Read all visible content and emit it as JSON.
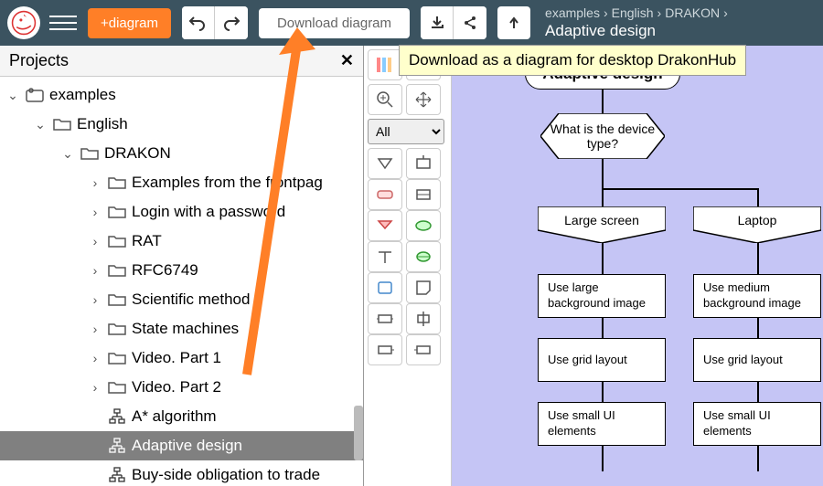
{
  "topbar": {
    "new_diagram_label": "+diagram",
    "download_label": "Download diagram",
    "tooltip": "Download as a diagram for desktop DrakonHub",
    "breadcrumb": [
      "examples",
      "English",
      "DRAKON"
    ],
    "breadcrumb_title": "Adaptive design"
  },
  "sidebar": {
    "title": "Projects",
    "tree": {
      "root": "examples",
      "level1": "English",
      "level2": "DRAKON",
      "folders": [
        "Examples from the frontpag",
        "Login with a password",
        "RAT",
        "RFC6749",
        "Scientific method",
        "State machines",
        "Video. Part 1",
        "Video. Part 2"
      ],
      "files": [
        "A* algorithm",
        "Adaptive design",
        "Buy-side obligation to trade"
      ],
      "selected": "Adaptive design"
    }
  },
  "palette": {
    "dropdown": "All"
  },
  "flowchart": {
    "title": "Adaptive design",
    "question": "What is the device type?",
    "branches": [
      {
        "header": "Large screen",
        "steps": [
          "Use large background image",
          "Use grid layout",
          "Use small UI elements"
        ]
      },
      {
        "header": "Laptop",
        "steps": [
          "Use medium background image",
          "Use grid layout",
          "Use small UI elements"
        ]
      }
    ],
    "colors": {
      "canvas_bg": "#c5c5f5",
      "node_bg": "#ffffff",
      "node_border": "#000000"
    }
  },
  "annotation_arrow": {
    "color": "#ff7f27"
  }
}
